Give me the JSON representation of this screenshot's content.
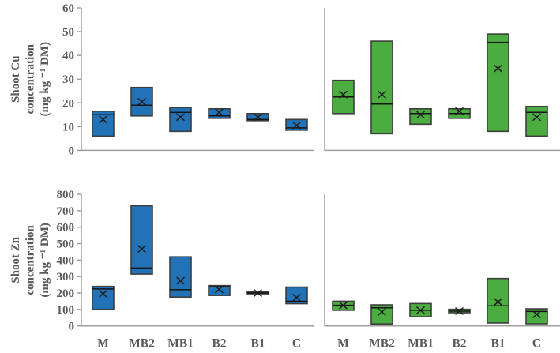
{
  "colors": {
    "blue_series": "#2272b8",
    "green_series": "#4bad40",
    "axis_gray": "#9f9f9f",
    "label_gray": "#595959",
    "box_border": "#3e3e3e",
    "median_black": "#151515"
  },
  "chart_data": [
    {
      "id": "shoot-cu-left",
      "type": "box",
      "position": "top-left",
      "ylabel": "Shoot Cu concentration (mg kg ⁻¹ DM)",
      "ylabel_lines": [
        "Shoot Cu",
        "concentration",
        "(mg kg ⁻¹ DM)"
      ],
      "ylim": [
        0,
        60
      ],
      "yticks": [
        "0",
        "10",
        "20",
        "30",
        "40",
        "50",
        "60"
      ],
      "grid": false,
      "show_ytick_labels": true,
      "show_category_labels": false,
      "series_color": "#2272b8",
      "categories": [
        "M",
        "MB2",
        "MB1",
        "B2",
        "B1",
        "C"
      ],
      "boxes": [
        {
          "category": "M",
          "q1": 6,
          "q3": 16.5,
          "median": 15,
          "mean": 13
        },
        {
          "category": "MB2",
          "q1": 14.5,
          "q3": 26.5,
          "median": 19,
          "mean": 20.5
        },
        {
          "category": "MB1",
          "q1": 8,
          "q3": 18,
          "median": 16,
          "mean": 14
        },
        {
          "category": "B2",
          "q1": 13.5,
          "q3": 17.5,
          "median": 14.5,
          "mean": 16
        },
        {
          "category": "B1",
          "q1": 12.5,
          "q3": 15.5,
          "median": 13,
          "mean": 14
        },
        {
          "category": "C",
          "q1": 8.5,
          "q3": 13,
          "median": 9.5,
          "mean": 10.5
        }
      ]
    },
    {
      "id": "shoot-cu-right",
      "type": "box",
      "position": "top-right",
      "ylabel": "",
      "ylabel_lines": [],
      "ylim": [
        0,
        60
      ],
      "yticks": [],
      "grid": false,
      "show_ytick_labels": false,
      "show_category_labels": false,
      "series_color": "#4bad40",
      "categories": [
        "M",
        "MB2",
        "MB1",
        "B2",
        "B1",
        "C"
      ],
      "boxes": [
        {
          "category": "M",
          "q1": 15.5,
          "q3": 29.5,
          "median": 22.5,
          "mean": 23.5
        },
        {
          "category": "MB2",
          "q1": 7,
          "q3": 46,
          "median": 19.5,
          "mean": 23.5
        },
        {
          "category": "MB1",
          "q1": 11,
          "q3": 17.5,
          "median": 15.5,
          "mean": 15
        },
        {
          "category": "B2",
          "q1": 13.5,
          "q3": 17.5,
          "median": 15.5,
          "mean": 16.5
        },
        {
          "category": "B1",
          "q1": 8,
          "q3": 49,
          "median": 45.5,
          "mean": 34.5
        },
        {
          "category": "C",
          "q1": 6,
          "q3": 18.5,
          "median": 16,
          "mean": 14
        }
      ]
    },
    {
      "id": "shoot-zn-left",
      "type": "box",
      "position": "bottom-left",
      "ylabel": "Shoot Zn concentration (mg kg ⁻¹ DM)",
      "ylabel_lines": [
        "Shoot Zn",
        "concentration",
        "(mg kg ⁻¹ DM)"
      ],
      "ylim": [
        0,
        800
      ],
      "yticks": [
        "0",
        "100",
        "200",
        "300",
        "400",
        "500",
        "600",
        "700",
        "800"
      ],
      "grid": false,
      "show_ytick_labels": true,
      "show_category_labels": true,
      "series_color": "#2272b8",
      "categories": [
        "M",
        "MB2",
        "MB1",
        "B2",
        "B1",
        "C"
      ],
      "boxes": [
        {
          "category": "M",
          "q1": 100,
          "q3": 240,
          "median": 225,
          "mean": 195
        },
        {
          "category": "MB2",
          "q1": 315,
          "q3": 730,
          "median": 352,
          "mean": 468
        },
        {
          "category": "MB1",
          "q1": 175,
          "q3": 420,
          "median": 220,
          "mean": 275
        },
        {
          "category": "B2",
          "q1": 185,
          "q3": 245,
          "median": 238,
          "mean": 222
        },
        {
          "category": "B1",
          "q1": 195,
          "q3": 207,
          "median": 201,
          "mean": 200
        },
        {
          "category": "C",
          "q1": 135,
          "q3": 236,
          "median": 150,
          "mean": 172
        }
      ]
    },
    {
      "id": "shoot-zn-right",
      "type": "box",
      "position": "bottom-right",
      "ylabel": "",
      "ylabel_lines": [],
      "ylim": [
        0,
        800
      ],
      "yticks": [],
      "grid": false,
      "show_ytick_labels": false,
      "show_category_labels": true,
      "series_color": "#4bad40",
      "categories": [
        "M",
        "MB2",
        "MB1",
        "B2",
        "B1",
        "C"
      ],
      "boxes": [
        {
          "category": "M",
          "q1": 95,
          "q3": 150,
          "median": 125,
          "mean": 125
        },
        {
          "category": "MB2",
          "q1": 12,
          "q3": 128,
          "median": 110,
          "mean": 85
        },
        {
          "category": "MB1",
          "q1": 56,
          "q3": 136,
          "median": 95,
          "mean": 95
        },
        {
          "category": "B2",
          "q1": 80,
          "q3": 101,
          "median": 90,
          "mean": 90
        },
        {
          "category": "B1",
          "q1": 18,
          "q3": 288,
          "median": 122,
          "mean": 146
        },
        {
          "category": "C",
          "q1": 13,
          "q3": 104,
          "median": 88,
          "mean": 70
        }
      ]
    }
  ]
}
